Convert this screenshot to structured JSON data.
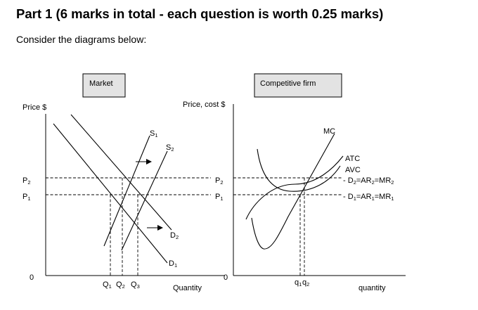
{
  "heading": "Part 1 (6 marks in total - each question is worth 0.25 marks)",
  "intro": "Consider the diagrams below:",
  "market": {
    "box_label": "Market",
    "y_axis_label": "Price $",
    "x_axis_label": "Quantity",
    "origin_label": "0",
    "price_labels": [
      {
        "letter": "P",
        "sub": "2"
      },
      {
        "letter": "P",
        "sub": "1"
      }
    ],
    "quantity_labels": [
      {
        "letter": "Q",
        "sub": "1"
      },
      {
        "letter": "Q",
        "sub": "2"
      },
      {
        "letter": "Q",
        "sub": "3"
      }
    ],
    "supply_labels": [
      {
        "letter": "S",
        "sub": "1"
      },
      {
        "letter": "S",
        "sub": "2"
      }
    ],
    "demand_labels": [
      {
        "letter": "D",
        "sub": "2"
      },
      {
        "letter": "D",
        "sub": "1"
      }
    ]
  },
  "firm": {
    "box_label": "Competitive firm",
    "y_axis_label": "Price, cost $",
    "x_axis_label": "quantity",
    "origin_label": "0",
    "price_labels": [
      {
        "letter": "P",
        "sub": "2"
      },
      {
        "letter": "P",
        "sub": "1"
      }
    ],
    "quantity_labels": [
      {
        "letter": "q",
        "sub": "1"
      },
      {
        "letter": "q",
        "sub": "2"
      }
    ],
    "mc_label": "MC",
    "atc_label": "ATC",
    "avc_label": "AVC",
    "line2_label": {
      "parts": [
        "D",
        "2",
        "=AR",
        "2",
        "=MR",
        "2"
      ]
    },
    "line1_label": {
      "parts": [
        "D",
        "1",
        "=AR",
        "1",
        "=MR",
        "1"
      ]
    }
  }
}
